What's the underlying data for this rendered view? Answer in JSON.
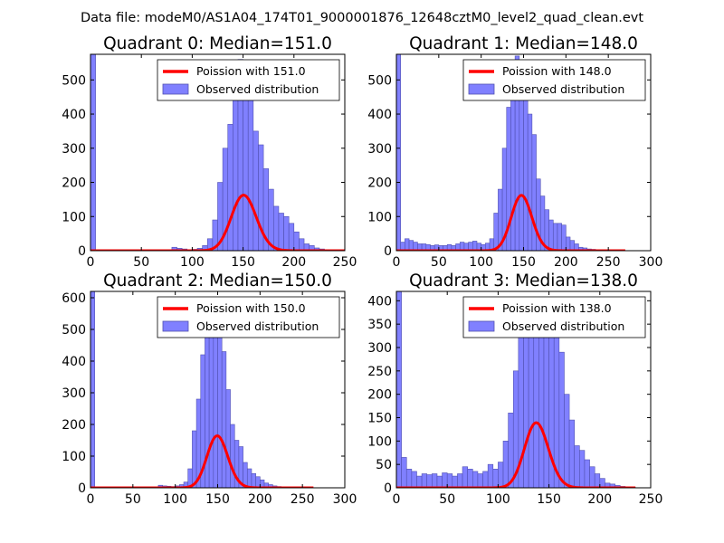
{
  "suptitle": "Data file: modeM0/AS1A04_174T01_9000001876_12648cztM0_level2_quad_clean.evt",
  "colors": {
    "bar": "#8080ff",
    "bar_edge": "#5050b0",
    "fit": "#ff0000",
    "axis": "#000000"
  },
  "chart_data": [
    {
      "type": "bar",
      "title": "Quadrant 0: Median=151.0",
      "xlim": [
        0,
        250
      ],
      "ylim": [
        0,
        575
      ],
      "xticks": [
        "0",
        "50",
        "100",
        "150",
        "200",
        "250"
      ],
      "yticks": [
        "0",
        "100",
        "200",
        "300",
        "400",
        "500"
      ],
      "legend": [
        "Poission with 151.0",
        "Observed distribution"
      ],
      "legend_loc": "upper right",
      "bin_width": 5,
      "bins": [
        [
          0,
          575
        ],
        [
          5,
          0
        ],
        [
          10,
          0
        ],
        [
          15,
          0
        ],
        [
          20,
          0
        ],
        [
          25,
          0
        ],
        [
          30,
          0
        ],
        [
          35,
          0
        ],
        [
          40,
          0
        ],
        [
          45,
          0
        ],
        [
          50,
          0
        ],
        [
          55,
          0
        ],
        [
          60,
          0
        ],
        [
          65,
          0
        ],
        [
          70,
          0
        ],
        [
          75,
          0
        ],
        [
          80,
          10
        ],
        [
          85,
          7
        ],
        [
          90,
          5
        ],
        [
          95,
          3
        ],
        [
          100,
          4
        ],
        [
          105,
          7
        ],
        [
          110,
          15
        ],
        [
          115,
          35
        ],
        [
          120,
          90
        ],
        [
          125,
          200
        ],
        [
          130,
          300
        ],
        [
          135,
          370
        ],
        [
          140,
          470
        ],
        [
          145,
          560
        ],
        [
          150,
          545
        ],
        [
          155,
          450
        ],
        [
          160,
          350
        ],
        [
          165,
          310
        ],
        [
          170,
          240
        ],
        [
          175,
          180
        ],
        [
          180,
          130
        ],
        [
          185,
          110
        ],
        [
          190,
          100
        ],
        [
          195,
          80
        ],
        [
          200,
          55
        ],
        [
          205,
          35
        ],
        [
          210,
          20
        ],
        [
          215,
          15
        ],
        [
          220,
          8
        ],
        [
          225,
          5
        ],
        [
          230,
          3
        ],
        [
          235,
          2
        ],
        [
          240,
          1
        ],
        [
          245,
          0
        ]
      ],
      "fit": {
        "mean": 151.0,
        "scale": 5010,
        "x_range": [
          0,
          250
        ]
      }
    },
    {
      "type": "bar",
      "title": "Quadrant 1: Median=148.0",
      "xlim": [
        0,
        300
      ],
      "ylim": [
        0,
        575
      ],
      "xticks": [
        "0",
        "50",
        "100",
        "150",
        "200",
        "250",
        "300"
      ],
      "yticks": [
        "0",
        "100",
        "200",
        "300",
        "400",
        "500"
      ],
      "legend": [
        "Poission with 148.0",
        "Observed distribution"
      ],
      "legend_loc": "upper right",
      "bin_width": 5,
      "bins": [
        [
          0,
          575
        ],
        [
          5,
          25
        ],
        [
          10,
          35
        ],
        [
          15,
          30
        ],
        [
          20,
          25
        ],
        [
          25,
          20
        ],
        [
          30,
          20
        ],
        [
          35,
          18
        ],
        [
          40,
          15
        ],
        [
          45,
          17
        ],
        [
          50,
          15
        ],
        [
          55,
          15
        ],
        [
          60,
          18
        ],
        [
          65,
          15
        ],
        [
          70,
          20
        ],
        [
          75,
          25
        ],
        [
          80,
          22
        ],
        [
          85,
          25
        ],
        [
          90,
          28
        ],
        [
          95,
          22
        ],
        [
          100,
          18
        ],
        [
          105,
          22
        ],
        [
          110,
          35
        ],
        [
          115,
          110
        ],
        [
          120,
          180
        ],
        [
          125,
          300
        ],
        [
          130,
          420
        ],
        [
          135,
          520
        ],
        [
          140,
          570
        ],
        [
          145,
          545
        ],
        [
          150,
          470
        ],
        [
          155,
          400
        ],
        [
          160,
          340
        ],
        [
          165,
          210
        ],
        [
          170,
          160
        ],
        [
          175,
          120
        ],
        [
          180,
          90
        ],
        [
          185,
          80
        ],
        [
          190,
          80
        ],
        [
          195,
          75
        ],
        [
          200,
          40
        ],
        [
          205,
          30
        ],
        [
          210,
          20
        ],
        [
          215,
          10
        ],
        [
          220,
          8
        ],
        [
          225,
          5
        ],
        [
          230,
          4
        ],
        [
          235,
          3
        ],
        [
          240,
          2
        ],
        [
          245,
          1
        ],
        [
          250,
          1
        ],
        [
          255,
          0
        ],
        [
          260,
          0
        ],
        [
          265,
          0
        ]
      ],
      "fit": {
        "mean": 148.0,
        "scale": 4940,
        "x_range": [
          0,
          270
        ]
      }
    },
    {
      "type": "bar",
      "title": "Quadrant 2: Median=150.0",
      "xlim": [
        0,
        300
      ],
      "ylim": [
        0,
        620
      ],
      "xticks": [
        "0",
        "50",
        "100",
        "150",
        "200",
        "250",
        "300"
      ],
      "yticks": [
        "0",
        "100",
        "200",
        "300",
        "400",
        "500",
        "600"
      ],
      "legend": [
        "Poission with 150.0",
        "Observed distribution"
      ],
      "legend_loc": "upper right",
      "bin_width": 5,
      "bins": [
        [
          0,
          620
        ],
        [
          5,
          0
        ],
        [
          10,
          0
        ],
        [
          15,
          0
        ],
        [
          20,
          0
        ],
        [
          25,
          0
        ],
        [
          30,
          0
        ],
        [
          35,
          0
        ],
        [
          40,
          0
        ],
        [
          45,
          0
        ],
        [
          50,
          0
        ],
        [
          55,
          0
        ],
        [
          60,
          0
        ],
        [
          65,
          0
        ],
        [
          70,
          0
        ],
        [
          75,
          0
        ],
        [
          80,
          8
        ],
        [
          85,
          6
        ],
        [
          90,
          5
        ],
        [
          95,
          4
        ],
        [
          100,
          6
        ],
        [
          105,
          10
        ],
        [
          110,
          18
        ],
        [
          115,
          60
        ],
        [
          120,
          180
        ],
        [
          125,
          280
        ],
        [
          130,
          420
        ],
        [
          135,
          540
        ],
        [
          140,
          590
        ],
        [
          145,
          575
        ],
        [
          150,
          500
        ],
        [
          155,
          430
        ],
        [
          160,
          310
        ],
        [
          165,
          200
        ],
        [
          170,
          150
        ],
        [
          175,
          130
        ],
        [
          180,
          80
        ],
        [
          185,
          60
        ],
        [
          190,
          45
        ],
        [
          195,
          35
        ],
        [
          200,
          25
        ],
        [
          205,
          15
        ],
        [
          210,
          10
        ],
        [
          215,
          6
        ],
        [
          220,
          4
        ],
        [
          225,
          3
        ],
        [
          230,
          2
        ],
        [
          235,
          1
        ],
        [
          240,
          1
        ],
        [
          245,
          0
        ],
        [
          250,
          0
        ],
        [
          255,
          0
        ],
        [
          260,
          0
        ]
      ],
      "fit": {
        "mean": 150.0,
        "scale": 5040,
        "x_range": [
          0,
          263
        ]
      }
    },
    {
      "type": "bar",
      "title": "Quadrant 3: Median=138.0",
      "xlim": [
        0,
        250
      ],
      "ylim": [
        0,
        420
      ],
      "xticks": [
        "0",
        "50",
        "100",
        "150",
        "200",
        "250"
      ],
      "yticks": [
        "0",
        "50",
        "100",
        "150",
        "200",
        "250",
        "300",
        "350",
        "400"
      ],
      "legend": [
        "Poission with 138.0",
        "Observed distribution"
      ],
      "legend_loc": "upper right",
      "bin_width": 5,
      "bins": [
        [
          0,
          420
        ],
        [
          5,
          65
        ],
        [
          10,
          40
        ],
        [
          15,
          35
        ],
        [
          20,
          25
        ],
        [
          25,
          30
        ],
        [
          30,
          28
        ],
        [
          35,
          30
        ],
        [
          40,
          25
        ],
        [
          45,
          32
        ],
        [
          50,
          30
        ],
        [
          55,
          25
        ],
        [
          60,
          30
        ],
        [
          65,
          45
        ],
        [
          70,
          40
        ],
        [
          75,
          35
        ],
        [
          80,
          30
        ],
        [
          85,
          35
        ],
        [
          90,
          50
        ],
        [
          95,
          40
        ],
        [
          100,
          55
        ],
        [
          105,
          100
        ],
        [
          110,
          160
        ],
        [
          115,
          250
        ],
        [
          120,
          350
        ],
        [
          125,
          400
        ],
        [
          130,
          380
        ],
        [
          135,
          395
        ],
        [
          140,
          370
        ],
        [
          145,
          380
        ],
        [
          150,
          350
        ],
        [
          155,
          390
        ],
        [
          160,
          290
        ],
        [
          165,
          200
        ],
        [
          170,
          145
        ],
        [
          175,
          90
        ],
        [
          180,
          80
        ],
        [
          185,
          60
        ],
        [
          190,
          45
        ],
        [
          195,
          30
        ],
        [
          200,
          20
        ],
        [
          205,
          10
        ],
        [
          210,
          8
        ],
        [
          215,
          5
        ],
        [
          220,
          3
        ],
        [
          225,
          2
        ],
        [
          230,
          1
        ]
      ],
      "fit": {
        "mean": 138.0,
        "scale": 4100,
        "x_range": [
          0,
          235
        ]
      }
    }
  ]
}
